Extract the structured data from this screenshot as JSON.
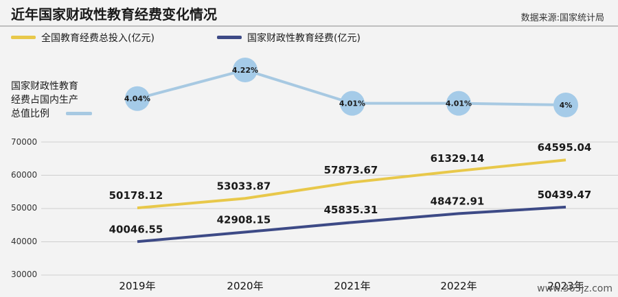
{
  "header": {
    "title": "近年国家财政性教育经费变化情况",
    "source": "数据来源:国家统计局"
  },
  "legend": {
    "total_label": "全国教育经费总投入(亿元)",
    "fiscal_label": "国家财政性教育经费(亿元)",
    "ratio_label_lines": [
      "国家财政性教育",
      "经费占国内生产",
      "总值比例"
    ]
  },
  "watermark": "www.365jz.com",
  "colors": {
    "total": "#e8c84a",
    "fiscal": "#3d4a86",
    "ratio": "#a7c9e2",
    "ratio_marker": "#a5cbe8",
    "background": "#f3f3f3",
    "grid": "#cfcfcf"
  },
  "chart_data": {
    "type": "line",
    "categories": [
      "2019年",
      "2020年",
      "2021年",
      "2022年",
      "2023年"
    ],
    "series": [
      {
        "name": "全国教育经费总投入(亿元)",
        "values": [
          50178.12,
          53033.87,
          57873.67,
          61329.14,
          64595.04
        ]
      },
      {
        "name": "国家财政性教育经费(亿元)",
        "values": [
          40046.55,
          42908.15,
          45835.31,
          48472.91,
          50439.47
        ]
      }
    ],
    "ratio_series": {
      "name": "国家财政性教育经费占国内生产总值比例",
      "values": [
        4.04,
        4.22,
        4.01,
        4.01,
        4.0
      ],
      "labels": [
        "4.04%",
        "4.22%",
        "4.01%",
        "4.01%",
        "4%"
      ]
    },
    "data_labels": {
      "total": [
        "50178.12",
        "53033.87",
        "57873.67",
        "61329.14",
        "64595.04"
      ],
      "fiscal": [
        "40046.55",
        "42908.15",
        "45835.31",
        "48472.91",
        "50439.47"
      ]
    },
    "yticks": [
      "70000",
      "60000",
      "50000",
      "40000",
      "30000"
    ],
    "ylim": [
      30000,
      70000
    ],
    "grid": true,
    "legend_position": "top-left"
  }
}
